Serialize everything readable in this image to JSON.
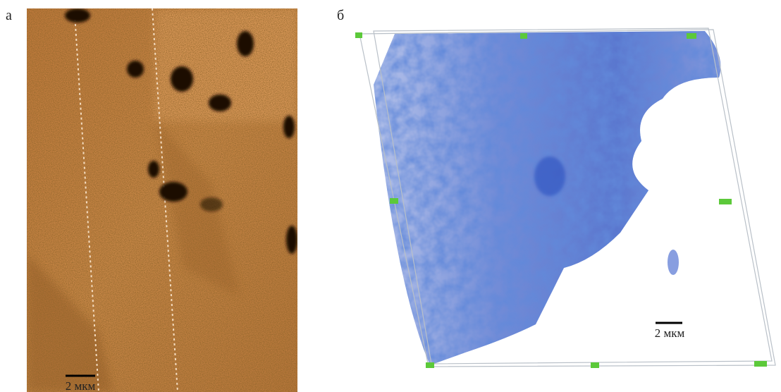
{
  "panels": [
    {
      "label": "а",
      "scale_bar": "2 мкм"
    },
    {
      "label": "б",
      "scale_bar": "2 мкм"
    }
  ]
}
